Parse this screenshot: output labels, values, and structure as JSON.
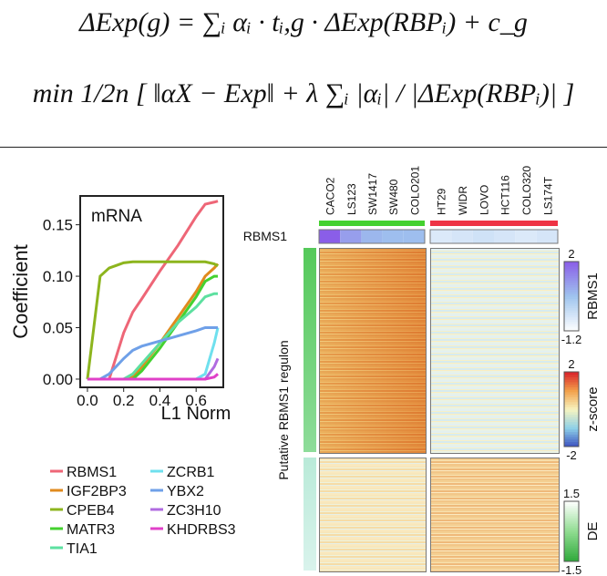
{
  "equations": [
    "ΔExp(g) = ∑ᵢ αᵢ · tᵢ,g · ΔExp(RBPᵢ) + c_g",
    "min 1/2n [ ‖αX − Exp‖ + λ ∑ᵢ |αᵢ| / |ΔExp(RBPᵢ)| ]"
  ],
  "chart_data": {
    "type": "line",
    "annotation": "mRNA",
    "x_label": "L1 Norm",
    "y_label": "Coefficient",
    "x": [
      0,
      0.07,
      0.12,
      0.2,
      0.25,
      0.3,
      0.4,
      0.5,
      0.6,
      0.65,
      0.7,
      0.72
    ],
    "xlim": [
      -0.04,
      0.75
    ],
    "ylim": [
      -0.008,
      0.178
    ],
    "xticks": [
      {
        "value": 0,
        "label": "0.0"
      },
      0.2,
      0.4,
      0.6
    ],
    "yticks": [
      {
        "value": 0,
        "label": "0.00"
      },
      {
        "value": 0.05,
        "label": "0.05"
      },
      {
        "value": 0.1,
        "label": "0.10"
      },
      {
        "value": 0.15,
        "label": "0.15"
      }
    ],
    "series": [
      {
        "name": "RBMS1",
        "color": "#ee6677",
        "values": [
          0,
          0,
          0,
          0.045,
          0.065,
          0.078,
          0.105,
          0.13,
          0.158,
          0.17,
          0.172,
          0.173
        ]
      },
      {
        "name": "IGF2BP3",
        "color": "#e08a1e",
        "values": [
          0,
          0,
          0,
          0,
          0.002,
          0.012,
          0.035,
          0.06,
          0.085,
          0.1,
          0.108,
          0.112
        ]
      },
      {
        "name": "CPEB4",
        "color": "#8db51e",
        "values": [
          0,
          0.1,
          0.108,
          0.113,
          0.114,
          0.114,
          0.114,
          0.114,
          0.114,
          0.114,
          0.112,
          0.11
        ]
      },
      {
        "name": "MATR3",
        "color": "#44d12f",
        "values": [
          0,
          0,
          0,
          0,
          0,
          0.008,
          0.03,
          0.055,
          0.08,
          0.095,
          0.1,
          0.1
        ]
      },
      {
        "name": "TIA1",
        "color": "#5de0a0",
        "values": [
          0,
          0,
          0,
          0,
          0.005,
          0.015,
          0.035,
          0.055,
          0.07,
          0.08,
          0.083,
          0.083
        ]
      },
      {
        "name": "ZCRB1",
        "color": "#6fe0ee",
        "values": [
          0,
          0,
          0,
          0,
          0,
          0,
          0,
          0,
          0,
          0.005,
          0.035,
          0.05
        ]
      },
      {
        "name": "YBX2",
        "color": "#6fa0e8",
        "values": [
          0,
          0,
          0.005,
          0.02,
          0.028,
          0.032,
          0.037,
          0.042,
          0.047,
          0.05,
          0.05,
          0.05
        ]
      },
      {
        "name": "ZC3H10",
        "color": "#b06be0",
        "values": [
          0,
          0,
          0,
          0,
          0,
          0,
          0,
          0,
          0,
          0,
          0.012,
          0.02
        ]
      },
      {
        "name": "KHDRBS3",
        "color": "#e040c8",
        "values": [
          0,
          0,
          0,
          0,
          0,
          0,
          0,
          0,
          0,
          0,
          0.002,
          0.005
        ]
      }
    ]
  },
  "heatmap": {
    "y_label": "Putative RBMS1 regulon",
    "groups": [
      {
        "columns": [
          "CACO2",
          "LS123",
          "SW1417",
          "SW480",
          "COLO201"
        ],
        "color": "#44d12f"
      },
      {
        "columns": [
          "HT29",
          "WIDR",
          "LOVO",
          "HCT116",
          "COLO320",
          "LS174T"
        ],
        "color": "#ee3344"
      }
    ],
    "rbms1_row": {
      "label": "RBMS1",
      "values": [
        2,
        1,
        0.6,
        0.5,
        0.5,
        -0.6,
        -0.5,
        -0.4,
        -0.5,
        -0.6,
        -0.5
      ]
    },
    "scales": [
      {
        "label": "RBMS1",
        "lim": [
          -1.2,
          2
        ],
        "ticks": [
          2,
          -1.2
        ],
        "colors": [
          "#ffffff",
          "#9fc4ee",
          "#8a5ee8"
        ]
      },
      {
        "label": "z-score",
        "lim": [
          -2,
          2
        ],
        "ticks": [
          2,
          -2
        ],
        "colors": [
          "#3a4fbf",
          "#8ed0e8",
          "#f7f4c0",
          "#f2a04a",
          "#d8202a"
        ]
      },
      {
        "label": "DE",
        "lim": [
          -1.5,
          1.5
        ],
        "ticks": [
          1.5,
          -1.5
        ],
        "colors": [
          "#2ea83a",
          "#8fdc90",
          "#ffffff"
        ]
      }
    ]
  }
}
